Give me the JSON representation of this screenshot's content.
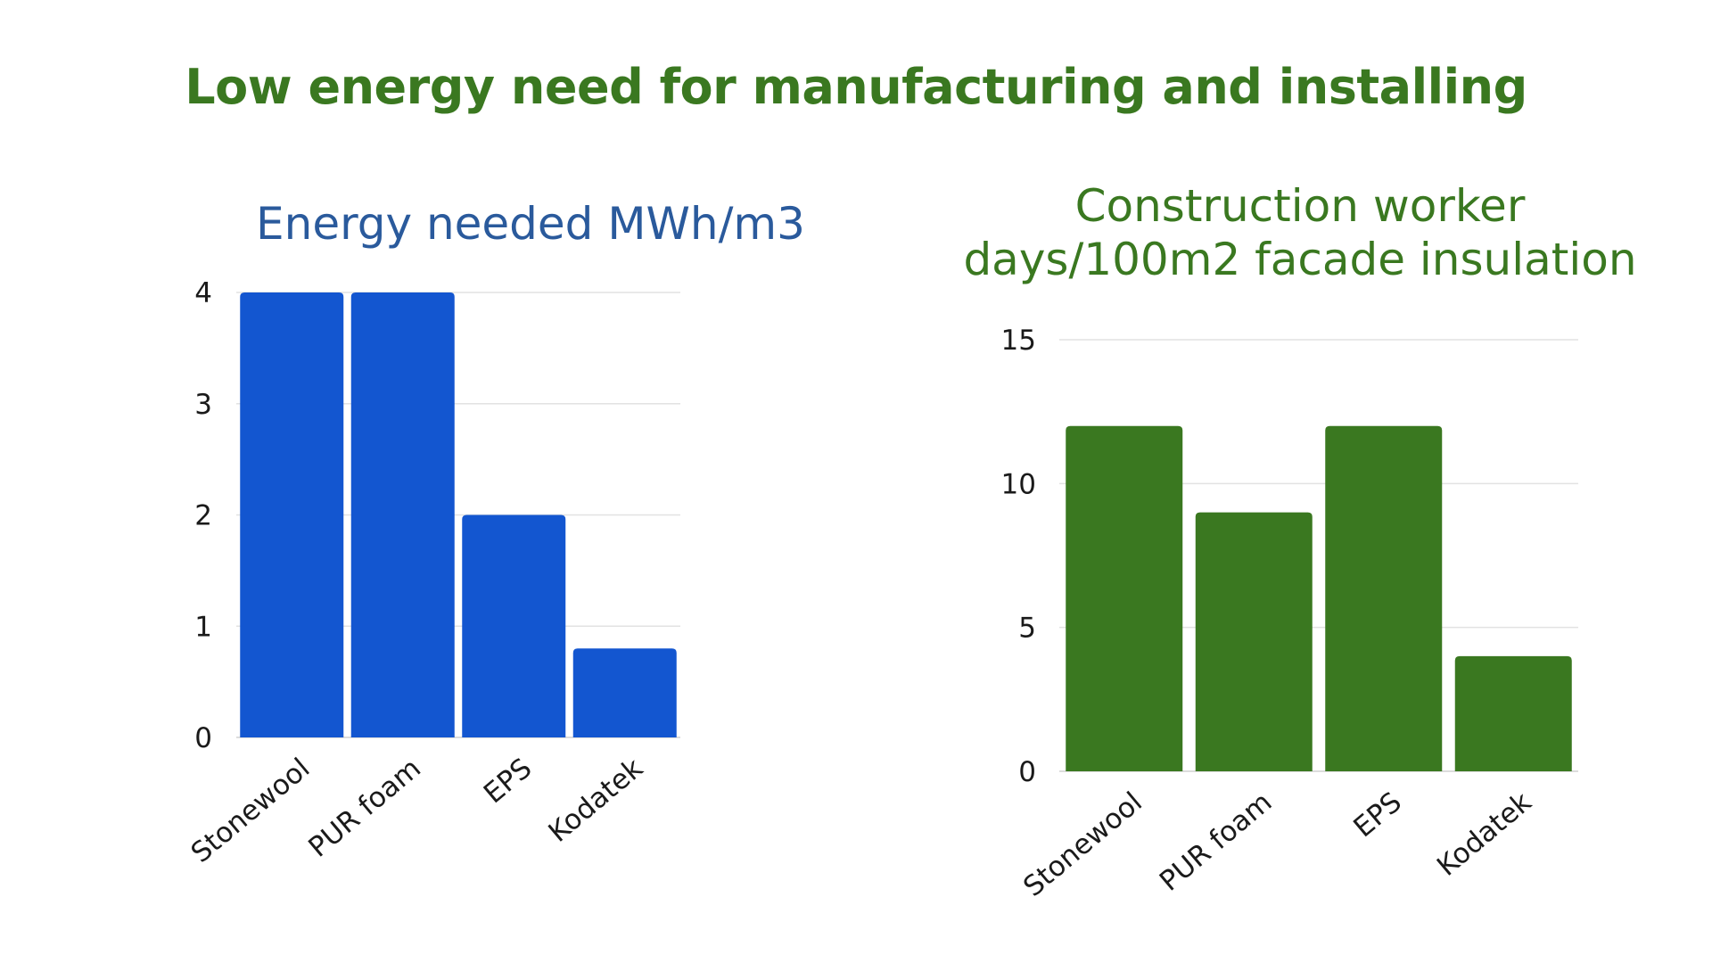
{
  "page": {
    "title": "Low energy need for manufacturing and installing",
    "title_color": "#3a7820"
  },
  "chart_data": [
    {
      "type": "bar",
      "title_lines": [
        "Energy needed MWh/m3"
      ],
      "title_color": "#2a5a9c",
      "categories": [
        "Stonewool",
        "PUR foam",
        "EPS",
        "Kodatek"
      ],
      "values": [
        4,
        4,
        2,
        0.8
      ],
      "bar_color": "#1356d0",
      "ylim": [
        0,
        4
      ],
      "yticks": [
        0,
        1,
        2,
        3,
        4
      ],
      "grid": true,
      "legend": "none",
      "xlabel": "",
      "ylabel": ""
    },
    {
      "type": "bar",
      "title_lines": [
        "Construction worker",
        "days/100m2 facade insulation"
      ],
      "title_color": "#3a7820",
      "categories": [
        "Stonewool",
        "PUR foam",
        "EPS",
        "Kodatek"
      ],
      "values": [
        12,
        9,
        12,
        4
      ],
      "bar_color": "#3a7820",
      "ylim": [
        0,
        15
      ],
      "yticks": [
        0,
        5,
        10,
        15
      ],
      "grid": true,
      "legend": "none",
      "xlabel": "",
      "ylabel": ""
    }
  ]
}
